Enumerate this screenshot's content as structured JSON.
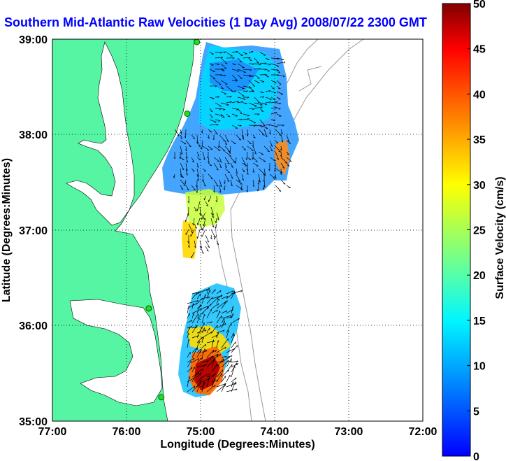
{
  "title": "Southern Mid-Atlantic Raw Velocities (1 Day Avg) 2008/07/22 2300 GMT",
  "map": {
    "xlabel": "Longitude (Degrees:Minutes)",
    "ylabel": "Latitude (Degrees:Minutes)",
    "x_ticks": [
      "77:00",
      "76:00",
      "75:00",
      "74:00",
      "73:00",
      "72:00"
    ],
    "y_ticks": [
      "39:00",
      "38:00",
      "37:00",
      "36:00",
      "35:00"
    ],
    "xlim": [
      -77,
      -72
    ],
    "ylim": [
      35,
      39
    ],
    "grid": "dotted",
    "land_color": "#55f5a3",
    "water_color": "#ffffff"
  },
  "colorbar": {
    "label": "Surface Velocity (cm/s)",
    "ticks": [
      "50",
      "45",
      "40",
      "35",
      "30",
      "25",
      "20",
      "15",
      "10",
      "5",
      "0"
    ],
    "range": [
      0,
      50
    ],
    "colormap": "jet"
  },
  "stations": [
    {
      "lon": -75.05,
      "lat": 38.97
    },
    {
      "lon": -75.18,
      "lat": 38.22
    },
    {
      "lon": -75.7,
      "lat": 36.18
    },
    {
      "lon": -75.53,
      "lat": 35.25
    }
  ]
}
